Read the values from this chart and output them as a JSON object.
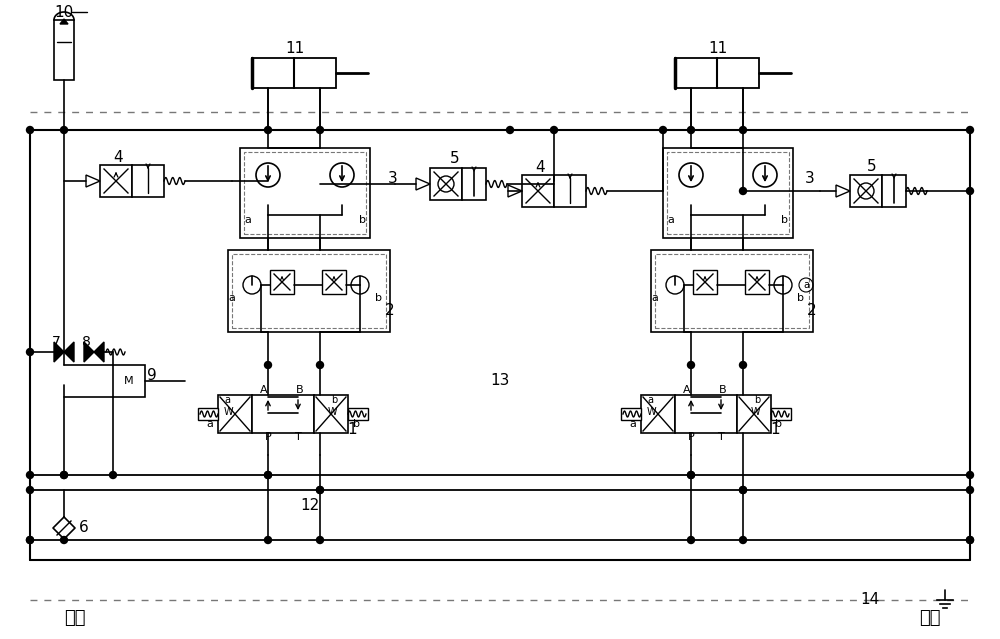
{
  "bg_color": "#ffffff",
  "figsize": [
    10.0,
    6.39
  ],
  "dpi": 100,
  "labels": {
    "jin_you": [
      75,
      618,
      "进油"
    ],
    "hui_you": [
      930,
      618,
      "回油"
    ],
    "num_10": [
      100,
      38,
      "10"
    ],
    "num_11_L": [
      300,
      52,
      "11"
    ],
    "num_11_R": [
      723,
      52,
      "11"
    ],
    "num_4_L": [
      133,
      182,
      "4"
    ],
    "num_4_R": [
      555,
      198,
      "4"
    ],
    "num_3_L": [
      393,
      178,
      "3"
    ],
    "num_3_R": [
      810,
      178,
      "3"
    ],
    "num_5_L": [
      468,
      185,
      "5"
    ],
    "num_5_R": [
      882,
      192,
      "5"
    ],
    "num_2_L": [
      390,
      312,
      "2"
    ],
    "num_2_R": [
      812,
      320,
      "2"
    ],
    "num_1_L": [
      360,
      430,
      "1"
    ],
    "num_1_R": [
      775,
      430,
      "1"
    ],
    "num_7": [
      58,
      342,
      "7"
    ],
    "num_8": [
      90,
      342,
      "8"
    ],
    "num_9": [
      140,
      378,
      "9"
    ],
    "num_6": [
      85,
      530,
      "6"
    ],
    "num_12": [
      310,
      505,
      "12"
    ],
    "num_13": [
      500,
      380,
      "13"
    ],
    "num_14": [
      870,
      600,
      "14"
    ]
  }
}
